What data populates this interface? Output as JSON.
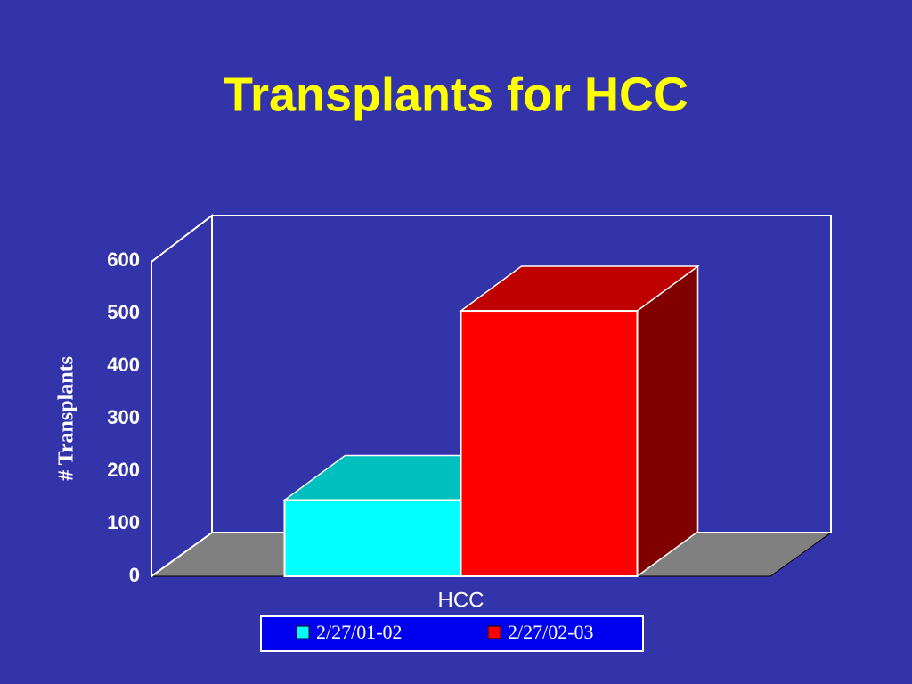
{
  "chart_data": {
    "type": "bar3d",
    "title": "Transplants for HCC",
    "y_label": "# Transplants",
    "categories": [
      "HCC"
    ],
    "series": [
      {
        "name": "2/27/01-02",
        "color": "#00ffff",
        "values": [
          145
        ]
      },
      {
        "name": "2/27/02-03",
        "color": "#ff0000",
        "values": [
          505
        ]
      }
    ],
    "ylim": [
      0,
      600
    ],
    "yticks": [
      0,
      100,
      200,
      300,
      400,
      500,
      600
    ],
    "grid": false
  }
}
